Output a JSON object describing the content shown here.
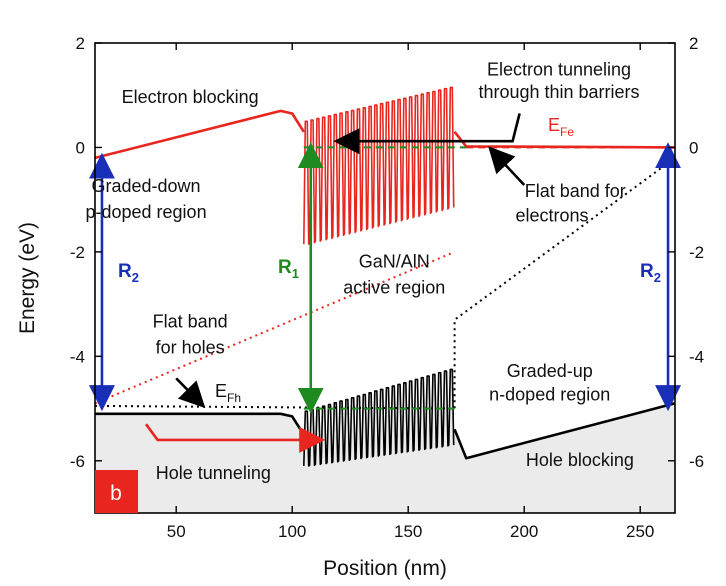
{
  "chart_data": {
    "type": "line",
    "panel_label": "b",
    "xlabel": "Position (nm)",
    "ylabel": "Energy (eV)",
    "xlim": [
      15,
      265
    ],
    "ylim": [
      -7,
      2
    ],
    "x_ticks": [
      50,
      100,
      150,
      200,
      250
    ],
    "y_ticks": [
      2,
      0,
      -2,
      -4,
      -6
    ],
    "right_y_ticks": [
      2,
      0,
      -2,
      -4,
      -6
    ],
    "grid": false,
    "series": [
      {
        "role": "conduction band",
        "color": "#e8261f",
        "style": "solid",
        "segments": [
          {
            "x": [
              15,
              95,
              100,
              105
            ],
            "y": [
              -0.2,
              0.7,
              0.65,
              0.3
            ]
          },
          {
            "type": "oscillation",
            "x_start": 105,
            "x_end": 170,
            "period_nm": 2.5,
            "top_start": 0.5,
            "top_end": 1.15,
            "bottom_start": -1.85,
            "bottom_end": -1.15
          },
          {
            "x": [
              170,
              175,
              265
            ],
            "y": [
              0.3,
              0.02,
              0.0
            ]
          }
        ]
      },
      {
        "role": "valence band",
        "color": "#000000",
        "style": "solid",
        "segments": [
          {
            "x": [
              15,
              95,
              100,
              105
            ],
            "y": [
              -5.1,
              -5.1,
              -5.15,
              -5.5
            ]
          },
          {
            "type": "oscillation",
            "x_start": 105,
            "x_end": 170,
            "period_nm": 2.5,
            "top_start": -5.05,
            "top_end": -4.25,
            "bottom_start": -6.1,
            "bottom_end": -5.7
          },
          {
            "x": [
              170,
              175,
              265
            ],
            "y": [
              -5.4,
              -5.95,
              -4.9
            ]
          }
        ]
      },
      {
        "role": "conduction band (dotted)",
        "color": "#e8261f",
        "style": "dotted",
        "x": [
          15,
          170
        ],
        "y": [
          -4.9,
          -2.0
        ]
      },
      {
        "role": "valence band (dotted)",
        "color": "#000000",
        "style": "dotted",
        "x": [
          15,
          170,
          170,
          265
        ],
        "y": [
          -4.95,
          -5.0,
          -3.3,
          -0.2
        ]
      },
      {
        "role": "E_Fe level",
        "color": "#1f8a1f",
        "style": "dashed",
        "x": [
          105,
          175
        ],
        "y": [
          0.0,
          0.0
        ]
      },
      {
        "role": "E_Fe level",
        "color": "#e8261f",
        "style": "dashed",
        "x": [
          175,
          265
        ],
        "y": [
          0.0,
          0.0
        ]
      },
      {
        "role": "E_Fh level",
        "color": "#1f8a1f",
        "style": "dashed",
        "x": [
          105,
          170
        ],
        "y": [
          -5.0,
          -5.0
        ]
      }
    ],
    "arrows": [
      {
        "label": "R1",
        "color": "#1f8a1f",
        "x": 108,
        "y_from": 0.0,
        "y_to": -5.0,
        "double": true
      },
      {
        "label": "R2",
        "color": "#1a2fb8",
        "x": 18,
        "y_from": -0.2,
        "y_to": -4.95,
        "double": true
      },
      {
        "label": "R2",
        "color": "#1a2fb8",
        "x": 262,
        "y_from": 0.0,
        "y_to": -4.95,
        "double": true
      },
      {
        "label": "electron tunneling",
        "color": "#000000",
        "points": [
          [
            198,
            0.65
          ],
          [
            195,
            0.12
          ],
          [
            120,
            0.12
          ]
        ]
      },
      {
        "label": "hole tunneling",
        "color": "#e8261f",
        "points": [
          [
            37,
            -5.3
          ],
          [
            42,
            -5.6
          ],
          [
            112,
            -5.6
          ]
        ]
      },
      {
        "label": "flat band for electrons",
        "color": "#000000",
        "points": [
          [
            200,
            -0.72
          ],
          [
            186,
            -0.05
          ]
        ]
      },
      {
        "label": "flat band for holes",
        "color": "#000000",
        "points": [
          [
            50,
            -4.42
          ],
          [
            61,
            -4.92
          ]
        ]
      }
    ],
    "annotations": [
      {
        "text": "Electron blocking",
        "x": 56,
        "y": 0.85,
        "color": "#111111"
      },
      {
        "text": "Electron tunneling",
        "x": 215,
        "y": 1.38,
        "color": "#111111"
      },
      {
        "text": "through thin barriers",
        "x": 215,
        "y": 0.95,
        "color": "#111111"
      },
      {
        "text": "Graded-down",
        "x": 37,
        "y": -0.85,
        "color": "#111111"
      },
      {
        "text": "p-doped region",
        "x": 37,
        "y": -1.35,
        "color": "#111111"
      },
      {
        "text": "Flat band for",
        "x": 222,
        "y": -0.95,
        "color": "#111111"
      },
      {
        "text": "electrons",
        "x": 212,
        "y": -1.42,
        "color": "#111111"
      },
      {
        "text": "GaN/AlN",
        "x": 144,
        "y": -2.3,
        "color": "#111111"
      },
      {
        "text": "active region",
        "x": 144,
        "y": -2.8,
        "color": "#111111"
      },
      {
        "text": "Flat band",
        "x": 56,
        "y": -3.45,
        "color": "#111111"
      },
      {
        "text": "for holes",
        "x": 56,
        "y": -3.95,
        "color": "#111111"
      },
      {
        "text": "Graded-up",
        "x": 211,
        "y": -4.4,
        "color": "#111111"
      },
      {
        "text": "n-doped region",
        "x": 211,
        "y": -4.85,
        "color": "#111111"
      },
      {
        "text": "Hole blocking",
        "x": 224,
        "y": -6.1,
        "color": "#111111"
      },
      {
        "text": "Hole tunneling",
        "x": 66,
        "y": -6.35,
        "color": "#e8261f"
      }
    ],
    "labels": {
      "r1": {
        "main": "R",
        "sub": "1"
      },
      "r2": {
        "main": "R",
        "sub": "2"
      },
      "efe": {
        "main": "E",
        "sub": "Fe"
      },
      "efh": {
        "main": "E",
        "sub": "Fh"
      }
    }
  },
  "colors": {
    "conduction": "#e8261f",
    "valence": "#000000",
    "level": "#1f8a1f",
    "range": "#1a2fb8",
    "shade": "#ebebeb",
    "panel_badge": "#e8261f"
  }
}
